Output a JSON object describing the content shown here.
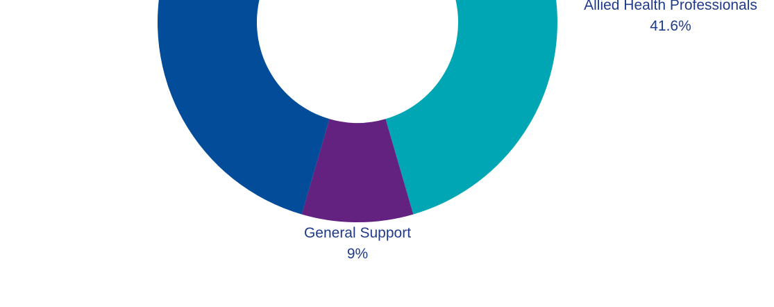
{
  "chart_data": {
    "type": "pie",
    "donut": true,
    "slices": [
      {
        "label": "Allied Health Professionals",
        "value": 41.6,
        "value_label": "41.6%",
        "color": "#01a6b4"
      },
      {
        "label": "General Support",
        "value": 9,
        "value_label": "9%",
        "color": "#63227f"
      },
      {
        "label": "",
        "value": 49.4,
        "value_label": "",
        "color": "#024c9a"
      }
    ]
  }
}
